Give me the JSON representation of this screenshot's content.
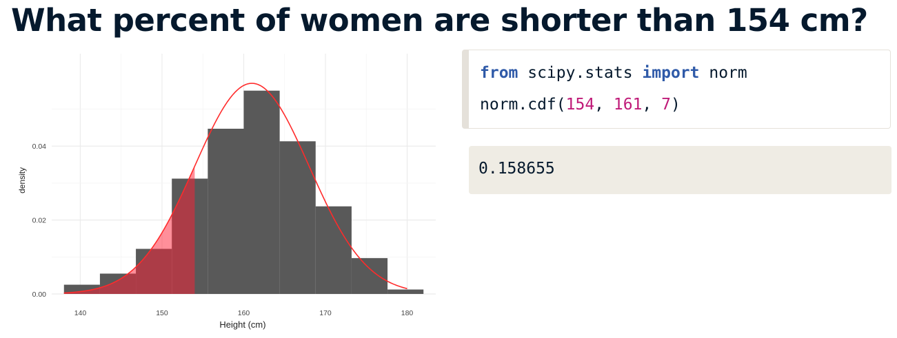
{
  "title": "What percent of women are shorter than 154 cm?",
  "code": {
    "line1": {
      "kw1": "from",
      "mod": " scipy.stats ",
      "kw2": "import",
      "name": " norm"
    },
    "line2": {
      "func": "norm.cdf(",
      "a1": "154",
      "sep1": ", ",
      "a2": "161",
      "sep2": ", ",
      "a3": "7",
      "close": ")"
    }
  },
  "output": "0.158655",
  "colors": {
    "title": "#05192d",
    "bars": "#595959",
    "curve": "#ff2b2b",
    "shade_light": "#ff8a94",
    "shade_dark": "#a2222f",
    "keyword": "#2f5aa8",
    "number": "#bf1a78",
    "output_bg": "#efece4"
  },
  "chart_data": {
    "type": "bar",
    "xlabel": "Height (cm)",
    "ylabel": "density",
    "xlim": [
      136.5,
      183.5
    ],
    "ylim": [
      0,
      0.065
    ],
    "x_ticks": [
      140,
      150,
      160,
      170,
      180
    ],
    "y_ticks": [
      0.0,
      0.02,
      0.04
    ],
    "y_tick_labels": [
      "0.00",
      "0.02",
      "0.04"
    ],
    "grid": true,
    "bins": [
      {
        "x0": 138.0,
        "x1": 142.4,
        "density": 0.0025
      },
      {
        "x0": 142.4,
        "x1": 146.8,
        "density": 0.0055
      },
      {
        "x0": 146.8,
        "x1": 151.2,
        "density": 0.0122
      },
      {
        "x0": 151.2,
        "x1": 155.6,
        "density": 0.0312
      },
      {
        "x0": 155.6,
        "x1": 160.0,
        "density": 0.0447
      },
      {
        "x0": 160.0,
        "x1": 164.4,
        "density": 0.055
      },
      {
        "x0": 164.4,
        "x1": 168.8,
        "density": 0.0413
      },
      {
        "x0": 168.8,
        "x1": 173.2,
        "density": 0.0237
      },
      {
        "x0": 173.2,
        "x1": 177.6,
        "density": 0.0097
      },
      {
        "x0": 177.6,
        "x1": 182.0,
        "density": 0.0012
      }
    ],
    "normal_curve": {
      "mean": 161,
      "sd": 7,
      "x_range": [
        138,
        180
      ]
    },
    "shaded_below": 154
  }
}
